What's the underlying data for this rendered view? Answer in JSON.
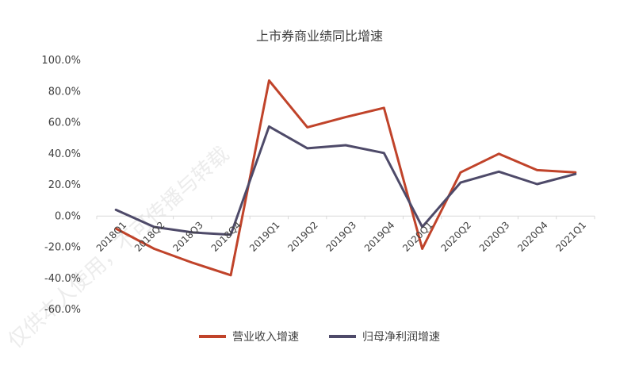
{
  "chart_data": {
    "type": "line",
    "title": "上市券商业绩同比增速",
    "categories": [
      "2018Q1",
      "2018Q2",
      "2018Q3",
      "2018Q4",
      "2019Q1",
      "2019Q2",
      "2019Q3",
      "2019Q4",
      "2020Q1",
      "2020Q2",
      "2020Q3",
      "2020Q4",
      "2021Q1"
    ],
    "series": [
      {
        "name": "营业收入增速",
        "color": "#C0432A",
        "values": [
          -8.0,
          -21.0,
          -30.0,
          -38.0,
          87.0,
          57.0,
          63.5,
          69.5,
          -21.0,
          28.0,
          40.0,
          29.5,
          28.0
        ]
      },
      {
        "name": "归母净利润增速",
        "color": "#4E4A69",
        "values": [
          4.0,
          -7.0,
          -10.5,
          -12.0,
          57.5,
          43.5,
          45.5,
          40.5,
          -7.0,
          21.5,
          28.5,
          20.5,
          27.0
        ]
      }
    ],
    "y_ticks": [
      "100.0%",
      "80.0%",
      "60.0%",
      "40.0%",
      "20.0%",
      "0.0%",
      "-20.0%",
      "-40.0%",
      "-60.0%"
    ],
    "ylim": [
      -60,
      100
    ],
    "grid": false,
    "legend_position": "bottom"
  },
  "watermark": "仅供本人使用，不可传播与转载"
}
